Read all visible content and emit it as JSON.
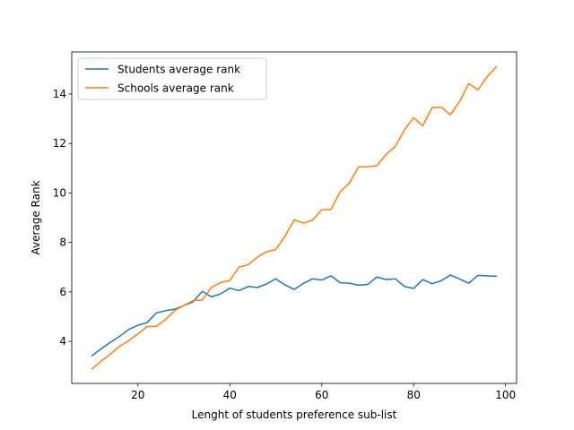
{
  "chart_data": {
    "type": "line",
    "xlabel": "Lenght of students preference sub-list",
    "ylabel": "Average Rank",
    "xlim": [
      5.6,
      102.4
    ],
    "ylim": [
      2.3,
      15.7
    ],
    "xticks": [
      20,
      40,
      60,
      80,
      100
    ],
    "yticks": [
      4,
      6,
      8,
      10,
      12,
      14
    ],
    "grid": false,
    "legend": "top-left",
    "x": [
      10,
      12,
      14,
      16,
      18,
      20,
      22,
      24,
      26,
      28,
      30,
      32,
      34,
      36,
      38,
      40,
      42,
      44,
      46,
      48,
      50,
      52,
      54,
      56,
      58,
      60,
      62,
      64,
      66,
      68,
      70,
      72,
      74,
      76,
      78,
      80,
      82,
      84,
      86,
      88,
      90,
      92,
      94,
      96,
      98
    ],
    "series": [
      {
        "name": "Students average rank",
        "color": "#1f77b4",
        "values": [
          3.42,
          3.7,
          3.96,
          4.2,
          4.48,
          4.65,
          4.76,
          5.15,
          5.24,
          5.3,
          5.45,
          5.6,
          6.02,
          5.8,
          5.92,
          6.15,
          6.05,
          6.22,
          6.18,
          6.32,
          6.53,
          6.28,
          6.1,
          6.34,
          6.53,
          6.48,
          6.65,
          6.37,
          6.35,
          6.27,
          6.3,
          6.6,
          6.5,
          6.53,
          6.22,
          6.14,
          6.5,
          6.33,
          6.45,
          6.68,
          6.52,
          6.35,
          6.67,
          6.65,
          6.63
        ]
      },
      {
        "name": "Schools average rank",
        "color": "#ff7f0e",
        "values": [
          2.88,
          3.2,
          3.48,
          3.8,
          4.03,
          4.3,
          4.6,
          4.61,
          4.88,
          5.25,
          5.45,
          5.65,
          5.67,
          6.18,
          6.38,
          6.46,
          7.0,
          7.1,
          7.4,
          7.63,
          7.71,
          8.25,
          8.91,
          8.78,
          8.9,
          9.32,
          9.33,
          10.04,
          10.4,
          11.05,
          11.06,
          11.1,
          11.56,
          11.88,
          12.55,
          13.04,
          12.72,
          13.45,
          13.47,
          13.16,
          13.7,
          14.42,
          14.17,
          14.7,
          15.1
        ]
      }
    ]
  }
}
